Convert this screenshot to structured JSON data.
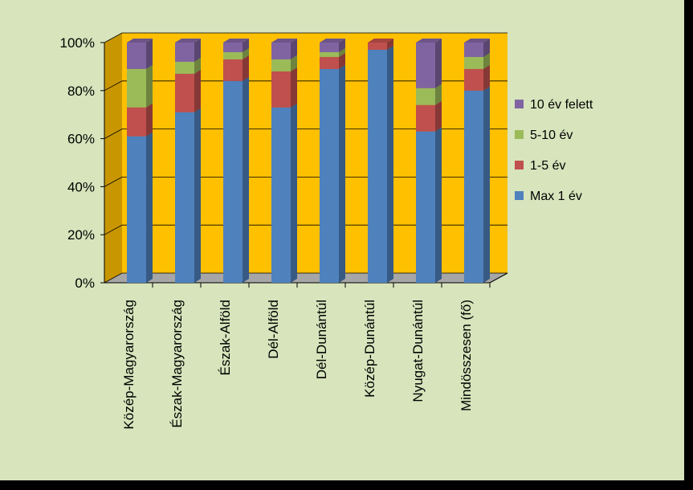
{
  "chart_data": {
    "type": "bar",
    "stacked": true,
    "percent": true,
    "three_d": true,
    "categories": [
      "Közép-Magyarország",
      "Észak-Magyarország",
      "Észak-Alföld",
      "Dél-Alföld",
      "Dél-Dunántúl",
      "Közép-Dunántúl",
      "Nyugat-Dunántúl",
      "Mindösszesen (fő)"
    ],
    "series": [
      {
        "name": "Max 1 év",
        "color": "#4f81bd",
        "values": [
          61,
          71,
          84,
          73,
          89,
          97,
          63,
          80
        ]
      },
      {
        "name": "1-5 év",
        "color": "#c0504d",
        "values": [
          12,
          16,
          9,
          15,
          5,
          3,
          11,
          9
        ]
      },
      {
        "name": "5-10 év",
        "color": "#9bbb59",
        "values": [
          16,
          5,
          3,
          5,
          2,
          0,
          7,
          5
        ]
      },
      {
        "name": "10 év felett",
        "color": "#8064a2",
        "values": [
          11,
          8,
          4,
          7,
          4,
          0,
          19,
          6
        ]
      }
    ],
    "ylim": [
      0,
      100
    ],
    "yticks": [
      "0%",
      "20%",
      "40%",
      "60%",
      "80%",
      "100%"
    ],
    "legend_position": "right",
    "wall_color": "#ffc000",
    "floor_color": "#a6a6a6",
    "grid": true
  }
}
